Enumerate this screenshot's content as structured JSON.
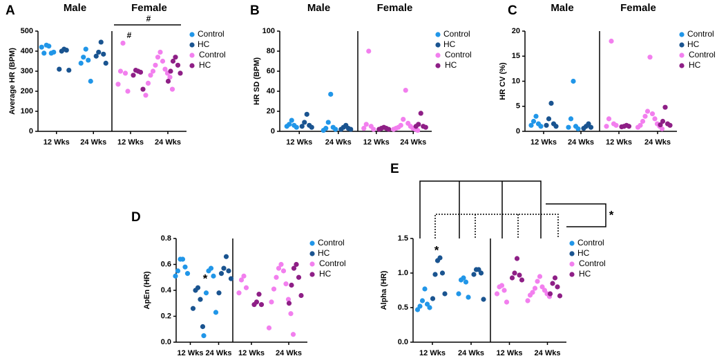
{
  "chart_data": [
    {
      "type": "strip",
      "label": "A",
      "ylabel": "Average HR (BPM)",
      "ylim": [
        0,
        500
      ],
      "yticks": [
        0,
        100,
        200,
        300,
        400,
        500
      ],
      "annotations": [
        "#",
        "#"
      ],
      "groups": [
        {
          "name": "Male",
          "categories": [
            "12 Wks",
            "24 Wks"
          ],
          "series": [
            {
              "name": "Control",
              "color": "#2196e8",
              "values": [
                [
                  425,
                  430,
                  390,
                  390,
                  395,
                  420
                ],
                [
                  410,
                  370,
                  355,
                  340,
                  250
                ]
              ]
            },
            {
              "name": "HC",
              "color": "#1a5490",
              "values": [
                [
                  410,
                  400,
                  405,
                  310,
                  305
                ],
                [
                  445,
                  395,
                  385,
                  375,
                  340
                ]
              ]
            }
          ]
        },
        {
          "name": "Female",
          "categories": [
            "12 Wks",
            "24 Wks"
          ],
          "series": [
            {
              "name": "Control",
              "color": "#f27fee",
              "values": [
                [
                  440,
                  300,
                  290,
                  235,
                  200
                ],
                [
                  395,
                  370,
                  350,
                  330,
                  310,
                  300,
                  290,
                  280,
                  270,
                  240,
                  210,
                  180
                ]
              ]
            },
            {
              "name": "HC",
              "color": "#8e1f86",
              "values": [
                [
                  300,
                  305,
                  295,
                  280,
                  210
                ],
                [
                  370,
                  350,
                  330,
                  300,
                  290,
                  250
                ]
              ]
            }
          ]
        }
      ]
    },
    {
      "type": "strip",
      "label": "B",
      "ylabel": "HR SD (BPM)",
      "ylim": [
        0,
        100
      ],
      "yticks": [
        0,
        20,
        40,
        60,
        80,
        100
      ],
      "annotations": [],
      "groups": [
        {
          "name": "Male",
          "categories": [
            "12 Wks",
            "24 Wks"
          ],
          "series": [
            {
              "name": "Control",
              "color": "#2196e8",
              "values": [
                [
                  11,
                  7,
                  6,
                  5,
                  4
                ],
                [
                  37,
                  9,
                  4,
                  3,
                  2,
                  1
                ]
              ]
            },
            {
              "name": "HC",
              "color": "#1a5490",
              "values": [
                [
                  17,
                  9,
                  6,
                  5,
                  4
                ],
                [
                  6,
                  4,
                  3,
                  2,
                  2
                ]
              ]
            }
          ]
        },
        {
          "name": "Female",
          "categories": [
            "12 Wks",
            "24 Wks"
          ],
          "series": [
            {
              "name": "Control",
              "color": "#f27fee",
              "values": [
                [
                  80,
                  7,
                  5,
                  3,
                  2
                ],
                [
                  41,
                  12,
                  8,
                  6,
                  5,
                  4,
                  3,
                  3,
                  2,
                  2,
                  1
                ]
              ]
            },
            {
              "name": "HC",
              "color": "#8e1f86",
              "values": [
                [
                  4,
                  3,
                  3,
                  2,
                  2
                ],
                [
                  18,
                  7,
                  5,
                  5,
                  4
                ]
              ]
            }
          ]
        }
      ]
    },
    {
      "type": "strip",
      "label": "C",
      "ylabel": "HR CV (%)",
      "ylim": [
        0,
        20
      ],
      "yticks": [
        0,
        5,
        10,
        15,
        20
      ],
      "annotations": [],
      "groups": [
        {
          "name": "Male",
          "categories": [
            "12 Wks",
            "24 Wks"
          ],
          "series": [
            {
              "name": "Control",
              "color": "#2196e8",
              "values": [
                [
                  3,
                  2,
                  1.5,
                  1.2,
                  1
                ],
                [
                  10,
                  2.5,
                  1,
                  0.8,
                  0.5
                ]
              ]
            },
            {
              "name": "HC",
              "color": "#1a5490",
              "values": [
                [
                  5.6,
                  2.5,
                  1.5,
                  1.2,
                  1
                ],
                [
                  1.5,
                  1,
                  0.8,
                  0.6
                ]
              ]
            }
          ]
        },
        {
          "name": "Female",
          "categories": [
            "12 Wks",
            "24 Wks"
          ],
          "series": [
            {
              "name": "Control",
              "color": "#f27fee",
              "values": [
                [
                  18,
                  2.5,
                  1.5,
                  1,
                  1.2
                ],
                [
                  14.8,
                  4,
                  3.5,
                  3,
                  2.5,
                  2,
                  1.5,
                  1.2,
                  1,
                  0.8,
                  0.5
                ]
              ]
            },
            {
              "name": "HC",
              "color": "#8e1f86",
              "values": [
                [
                  1.2,
                  1,
                  1,
                  0.9
                ],
                [
                  4.8,
                  2,
                  1.5,
                  1.3,
                  1.2
                ]
              ]
            }
          ]
        }
      ]
    },
    {
      "type": "strip",
      "label": "D",
      "ylabel": "ApEn (HR)",
      "ylim": [
        0,
        0.8
      ],
      "yticks": [
        {
          "value": 0,
          "label": "0.0"
        },
        0.2,
        0.4,
        0.6,
        0.8
      ],
      "annotations": [
        "*"
      ],
      "groups": [
        {
          "categories": [
            "12 Wks",
            "24 Wks"
          ],
          "series": [
            {
              "name": "Control",
              "color": "#2196e8",
              "values": [
                [
                  0.64,
                  0.64,
                  0.58,
                  0.55,
                  0.53,
                  0.51
                ],
                [
                  0.57,
                  0.55,
                  0.51,
                  0.38,
                  0.23,
                  0.05
                ]
              ]
            },
            {
              "name": "HC",
              "color": "#1a5490",
              "values": [
                [
                  0.42,
                  0.4,
                  0.33,
                  0.26,
                  0.12
                ],
                [
                  0.66,
                  0.57,
                  0.55,
                  0.53,
                  0.49,
                  0.38
                ]
              ]
            }
          ]
        },
        {
          "categories": [
            "12 Wks",
            "24 Wks"
          ],
          "series": [
            {
              "name": "Control",
              "color": "#f27fee",
              "values": [
                [
                  0.51,
                  0.48,
                  0.42,
                  0.38
                ],
                [
                  0.6,
                  0.57,
                  0.55,
                  0.5,
                  0.45,
                  0.41,
                  0.33,
                  0.31,
                  0.22,
                  0.11,
                  0.06
                ]
              ]
            },
            {
              "name": "HC",
              "color": "#8e1f86",
              "values": [
                [
                  0.37,
                  0.31,
                  0.29,
                  0.29
                ],
                [
                  0.6,
                  0.57,
                  0.5,
                  0.44,
                  0.36,
                  0.3
                ]
              ]
            }
          ]
        }
      ]
    },
    {
      "type": "strip",
      "label": "E",
      "ylabel": "Alpha (HR)",
      "ylim": [
        0,
        1.5
      ],
      "yticks": [
        {
          "value": 0,
          "label": "0.0"
        },
        0.5,
        {
          "value": 1,
          "label": "1.0"
        },
        1.5
      ],
      "annotations": [
        "*",
        "*"
      ],
      "groups": [
        {
          "categories": [
            "12 Wks",
            "24 Wks"
          ],
          "series": [
            {
              "name": "Control",
              "color": "#2196e8",
              "values": [
                [
                  0.77,
                  0.6,
                  0.55,
                  0.52,
                  0.5,
                  0.47
                ],
                [
                  0.93,
                  0.9,
                  0.87,
                  0.7,
                  0.65
                ]
              ]
            },
            {
              "name": "HC",
              "color": "#1a5490",
              "values": [
                [
                  1.22,
                  1.18,
                  1.0,
                  0.98,
                  0.7,
                  0.63
                ],
                [
                  1.05,
                  1.05,
                  1.0,
                  0.98,
                  0.62
                ]
              ]
            }
          ]
        },
        {
          "categories": [
            "12 Wks",
            "24 Wks"
          ],
          "series": [
            {
              "name": "Control",
              "color": "#f27fee",
              "values": [
                [
                  0.82,
                  0.8,
                  0.75,
                  0.7,
                  0.58
                ],
                [
                  0.95,
                  0.88,
                  0.8,
                  0.78,
                  0.75,
                  0.72,
                  0.7,
                  0.68,
                  0.66,
                  0.6
                ]
              ]
            },
            {
              "name": "HC",
              "color": "#8e1f86",
              "values": [
                [
                  1.21,
                  1.0,
                  0.97,
                  0.93,
                  0.9
                ],
                [
                  0.93,
                  0.85,
                  0.8,
                  0.7,
                  0.67
                ]
              ]
            }
          ]
        }
      ]
    }
  ]
}
